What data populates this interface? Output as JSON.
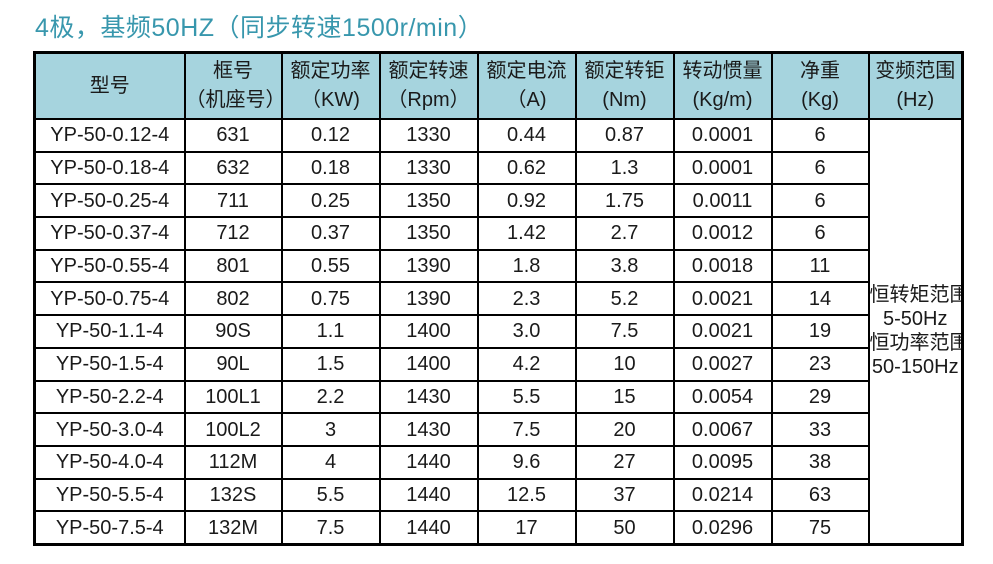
{
  "title": "4极，基频50HZ（同步转速1500r/min）",
  "colors": {
    "title_text": "#3897ad",
    "header_bg": "#a6d4de",
    "border": "#000000",
    "page_bg": "#ffffff"
  },
  "table": {
    "headers": [
      {
        "l1": "型号",
        "l2": ""
      },
      {
        "l1": "框号",
        "l2": "（机座号）"
      },
      {
        "l1": "额定功率",
        "l2": "（KW)"
      },
      {
        "l1": "额定转速",
        "l2": "（Rpm）"
      },
      {
        "l1": "额定电流",
        "l2": "（A)"
      },
      {
        "l1": "额定转钜",
        "l2": "(Nm)"
      },
      {
        "l1": "转动惯量",
        "l2": "(Kg/m)"
      },
      {
        "l1": "净重",
        "l2": "(Kg)"
      },
      {
        "l1": "变频范围",
        "l2": "(Hz)"
      }
    ],
    "rows": [
      [
        "YP-50-0.12-4",
        "631",
        "0.12",
        "1330",
        "0.44",
        "0.87",
        "0.0001",
        "6"
      ],
      [
        "YP-50-0.18-4",
        "632",
        "0.18",
        "1330",
        "0.62",
        "1.3",
        "0.0001",
        "6"
      ],
      [
        "YP-50-0.25-4",
        "711",
        "0.25",
        "1350",
        "0.92",
        "1.75",
        "0.0011",
        "6"
      ],
      [
        "YP-50-0.37-4",
        "712",
        "0.37",
        "1350",
        "1.42",
        "2.7",
        "0.0012",
        "6"
      ],
      [
        "YP-50-0.55-4",
        "801",
        "0.55",
        "1390",
        "1.8",
        "3.8",
        "0.0018",
        "11"
      ],
      [
        "YP-50-0.75-4",
        "802",
        "0.75",
        "1390",
        "2.3",
        "5.2",
        "0.0021",
        "14"
      ],
      [
        "YP-50-1.1-4",
        "90S",
        "1.1",
        "1400",
        "3.0",
        "7.5",
        "0.0021",
        "19"
      ],
      [
        "YP-50-1.5-4",
        "90L",
        "1.5",
        "1400",
        "4.2",
        "10",
        "0.0027",
        "23"
      ],
      [
        "YP-50-2.2-4",
        "100L1",
        "2.2",
        "1430",
        "5.5",
        "15",
        "0.0054",
        "29"
      ],
      [
        "YP-50-3.0-4",
        "100L2",
        "3",
        "1430",
        "7.5",
        "20",
        "0.0067",
        "33"
      ],
      [
        "YP-50-4.0-4",
        "112M",
        "4",
        "1440",
        "9.6",
        "27",
        "0.0095",
        "38"
      ],
      [
        "YP-50-5.5-4",
        "132S",
        "5.5",
        "1440",
        "12.5",
        "37",
        "0.0214",
        "63"
      ],
      [
        "YP-50-7.5-4",
        "132M",
        "7.5",
        "1440",
        "17",
        "50",
        "0.0296",
        "75"
      ]
    ],
    "freq_range": [
      "恒转矩范围",
      "5-50Hz",
      "恒功率范围",
      "50-150Hz"
    ]
  }
}
